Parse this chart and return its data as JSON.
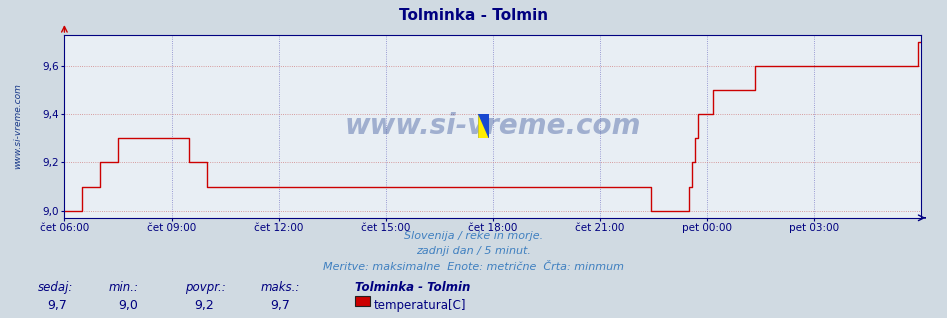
{
  "title": "Tolminka - Tolmin",
  "title_color": "#000080",
  "bg_color": "#d0dae2",
  "plot_bg_color": "#e8eef4",
  "grid_color_h": "#d08080",
  "grid_color_v": "#8080c8",
  "ylabel_ticks": [
    9.0,
    9.2,
    9.4,
    9.6
  ],
  "ylim_min": 8.97,
  "ylim_max": 9.73,
  "xtick_positions": [
    0,
    36,
    72,
    108,
    144,
    180,
    216,
    252
  ],
  "xtick_labels": [
    "čet 06:00",
    "čet 09:00",
    "čet 12:00",
    "čet 15:00",
    "čet 18:00",
    "čet 21:00",
    "pet 00:00",
    "pet 03:00"
  ],
  "tick_color": "#000080",
  "tick_fontsize": 7.5,
  "line_color": "#cc0000",
  "line_width": 1.0,
  "subtitle1": "Slovenija / reke in morje.",
  "subtitle2": "zadnji dan / 5 minut.",
  "subtitle3": "Meritve: maksimalne  Enote: metrične  Črta: minmum",
  "subtitle_color": "#4080c0",
  "subtitle_fontsize": 8.0,
  "footer_labels": [
    "sedaj:",
    "min.:",
    "povpr.:",
    "maks.:"
  ],
  "footer_values": [
    "9,7",
    "9,0",
    "9,2",
    "9,7"
  ],
  "footer_color": "#000080",
  "footer_fontsize": 8.5,
  "legend_title": "Tolminka - Tolmin",
  "legend_label": "temperatura[C]",
  "legend_color": "#cc0000",
  "watermark": "www.si-vreme.com",
  "watermark_color": "#1a3a8a",
  "data_x": [
    0,
    5,
    6,
    7,
    12,
    13,
    18,
    24,
    30,
    36,
    42,
    48,
    54,
    60,
    66,
    71,
    72,
    77,
    78,
    83,
    84,
    89,
    90,
    95,
    96,
    101,
    102,
    107,
    108,
    113,
    114,
    119,
    120,
    125,
    126,
    131,
    132,
    137,
    138,
    143,
    144,
    149,
    150,
    155,
    156,
    161,
    162,
    167,
    168,
    173,
    174,
    179,
    180,
    185,
    186,
    191,
    192,
    197,
    198,
    203,
    204,
    209,
    210,
    211,
    212,
    213,
    216,
    218,
    222,
    227,
    232,
    234,
    240,
    246,
    252,
    258,
    264,
    270,
    276,
    282,
    287,
    288
  ],
  "data_y": [
    9.0,
    9.0,
    9.1,
    9.1,
    9.2,
    9.2,
    9.3,
    9.3,
    9.3,
    9.3,
    9.2,
    9.1,
    9.1,
    9.1,
    9.1,
    9.1,
    9.1,
    9.1,
    9.1,
    9.1,
    9.1,
    9.1,
    9.1,
    9.1,
    9.1,
    9.1,
    9.1,
    9.1,
    9.1,
    9.1,
    9.1,
    9.1,
    9.1,
    9.1,
    9.1,
    9.1,
    9.1,
    9.1,
    9.1,
    9.1,
    9.1,
    9.1,
    9.1,
    9.1,
    9.1,
    9.1,
    9.1,
    9.1,
    9.1,
    9.1,
    9.1,
    9.1,
    9.1,
    9.1,
    9.1,
    9.1,
    9.1,
    9.0,
    9.0,
    9.0,
    9.0,
    9.0,
    9.1,
    9.2,
    9.3,
    9.4,
    9.4,
    9.5,
    9.5,
    9.5,
    9.6,
    9.6,
    9.6,
    9.6,
    9.6,
    9.6,
    9.6,
    9.6,
    9.6,
    9.6,
    9.7,
    9.7
  ]
}
